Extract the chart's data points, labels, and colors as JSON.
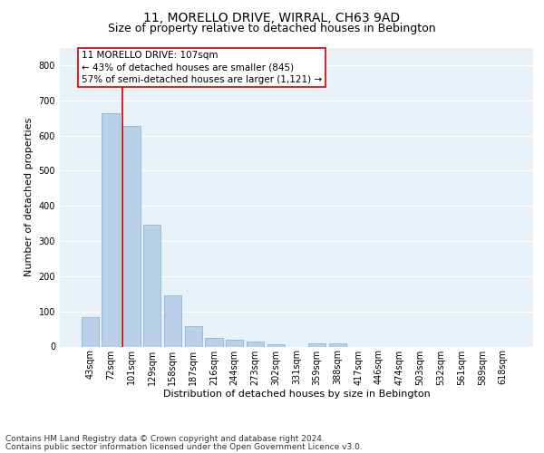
{
  "title": "11, MORELLO DRIVE, WIRRAL, CH63 9AD",
  "subtitle": "Size of property relative to detached houses in Bebington",
  "xlabel": "Distribution of detached houses by size in Bebington",
  "ylabel": "Number of detached properties",
  "footnote1": "Contains HM Land Registry data © Crown copyright and database right 2024.",
  "footnote2": "Contains public sector information licensed under the Open Government Licence v3.0.",
  "categories": [
    "43sqm",
    "72sqm",
    "101sqm",
    "129sqm",
    "158sqm",
    "187sqm",
    "216sqm",
    "244sqm",
    "273sqm",
    "302sqm",
    "331sqm",
    "359sqm",
    "388sqm",
    "417sqm",
    "446sqm",
    "474sqm",
    "503sqm",
    "532sqm",
    "561sqm",
    "589sqm",
    "618sqm"
  ],
  "values": [
    83,
    663,
    628,
    347,
    145,
    58,
    25,
    19,
    14,
    7,
    0,
    8,
    8,
    0,
    0,
    0,
    0,
    0,
    0,
    0,
    0
  ],
  "bar_color": "#b8d0e8",
  "bar_edge_color": "#7aafd4",
  "red_line_x": 1.575,
  "red_line_color": "#cc0000",
  "ylim": [
    0,
    850
  ],
  "yticks": [
    0,
    100,
    200,
    300,
    400,
    500,
    600,
    700,
    800
  ],
  "annotation_text": "11 MORELLO DRIVE: 107sqm\n← 43% of detached houses are smaller (845)\n57% of semi-detached houses are larger (1,121) →",
  "annotation_box_facecolor": "#ffffff",
  "annotation_box_edgecolor": "#cc0000",
  "background_color": "#e8f0f8",
  "grid_color": "#ffffff",
  "title_fontsize": 10,
  "subtitle_fontsize": 9,
  "axis_label_fontsize": 8,
  "tick_fontsize": 7,
  "annotation_fontsize": 7.5,
  "footnote_fontsize": 6.5
}
